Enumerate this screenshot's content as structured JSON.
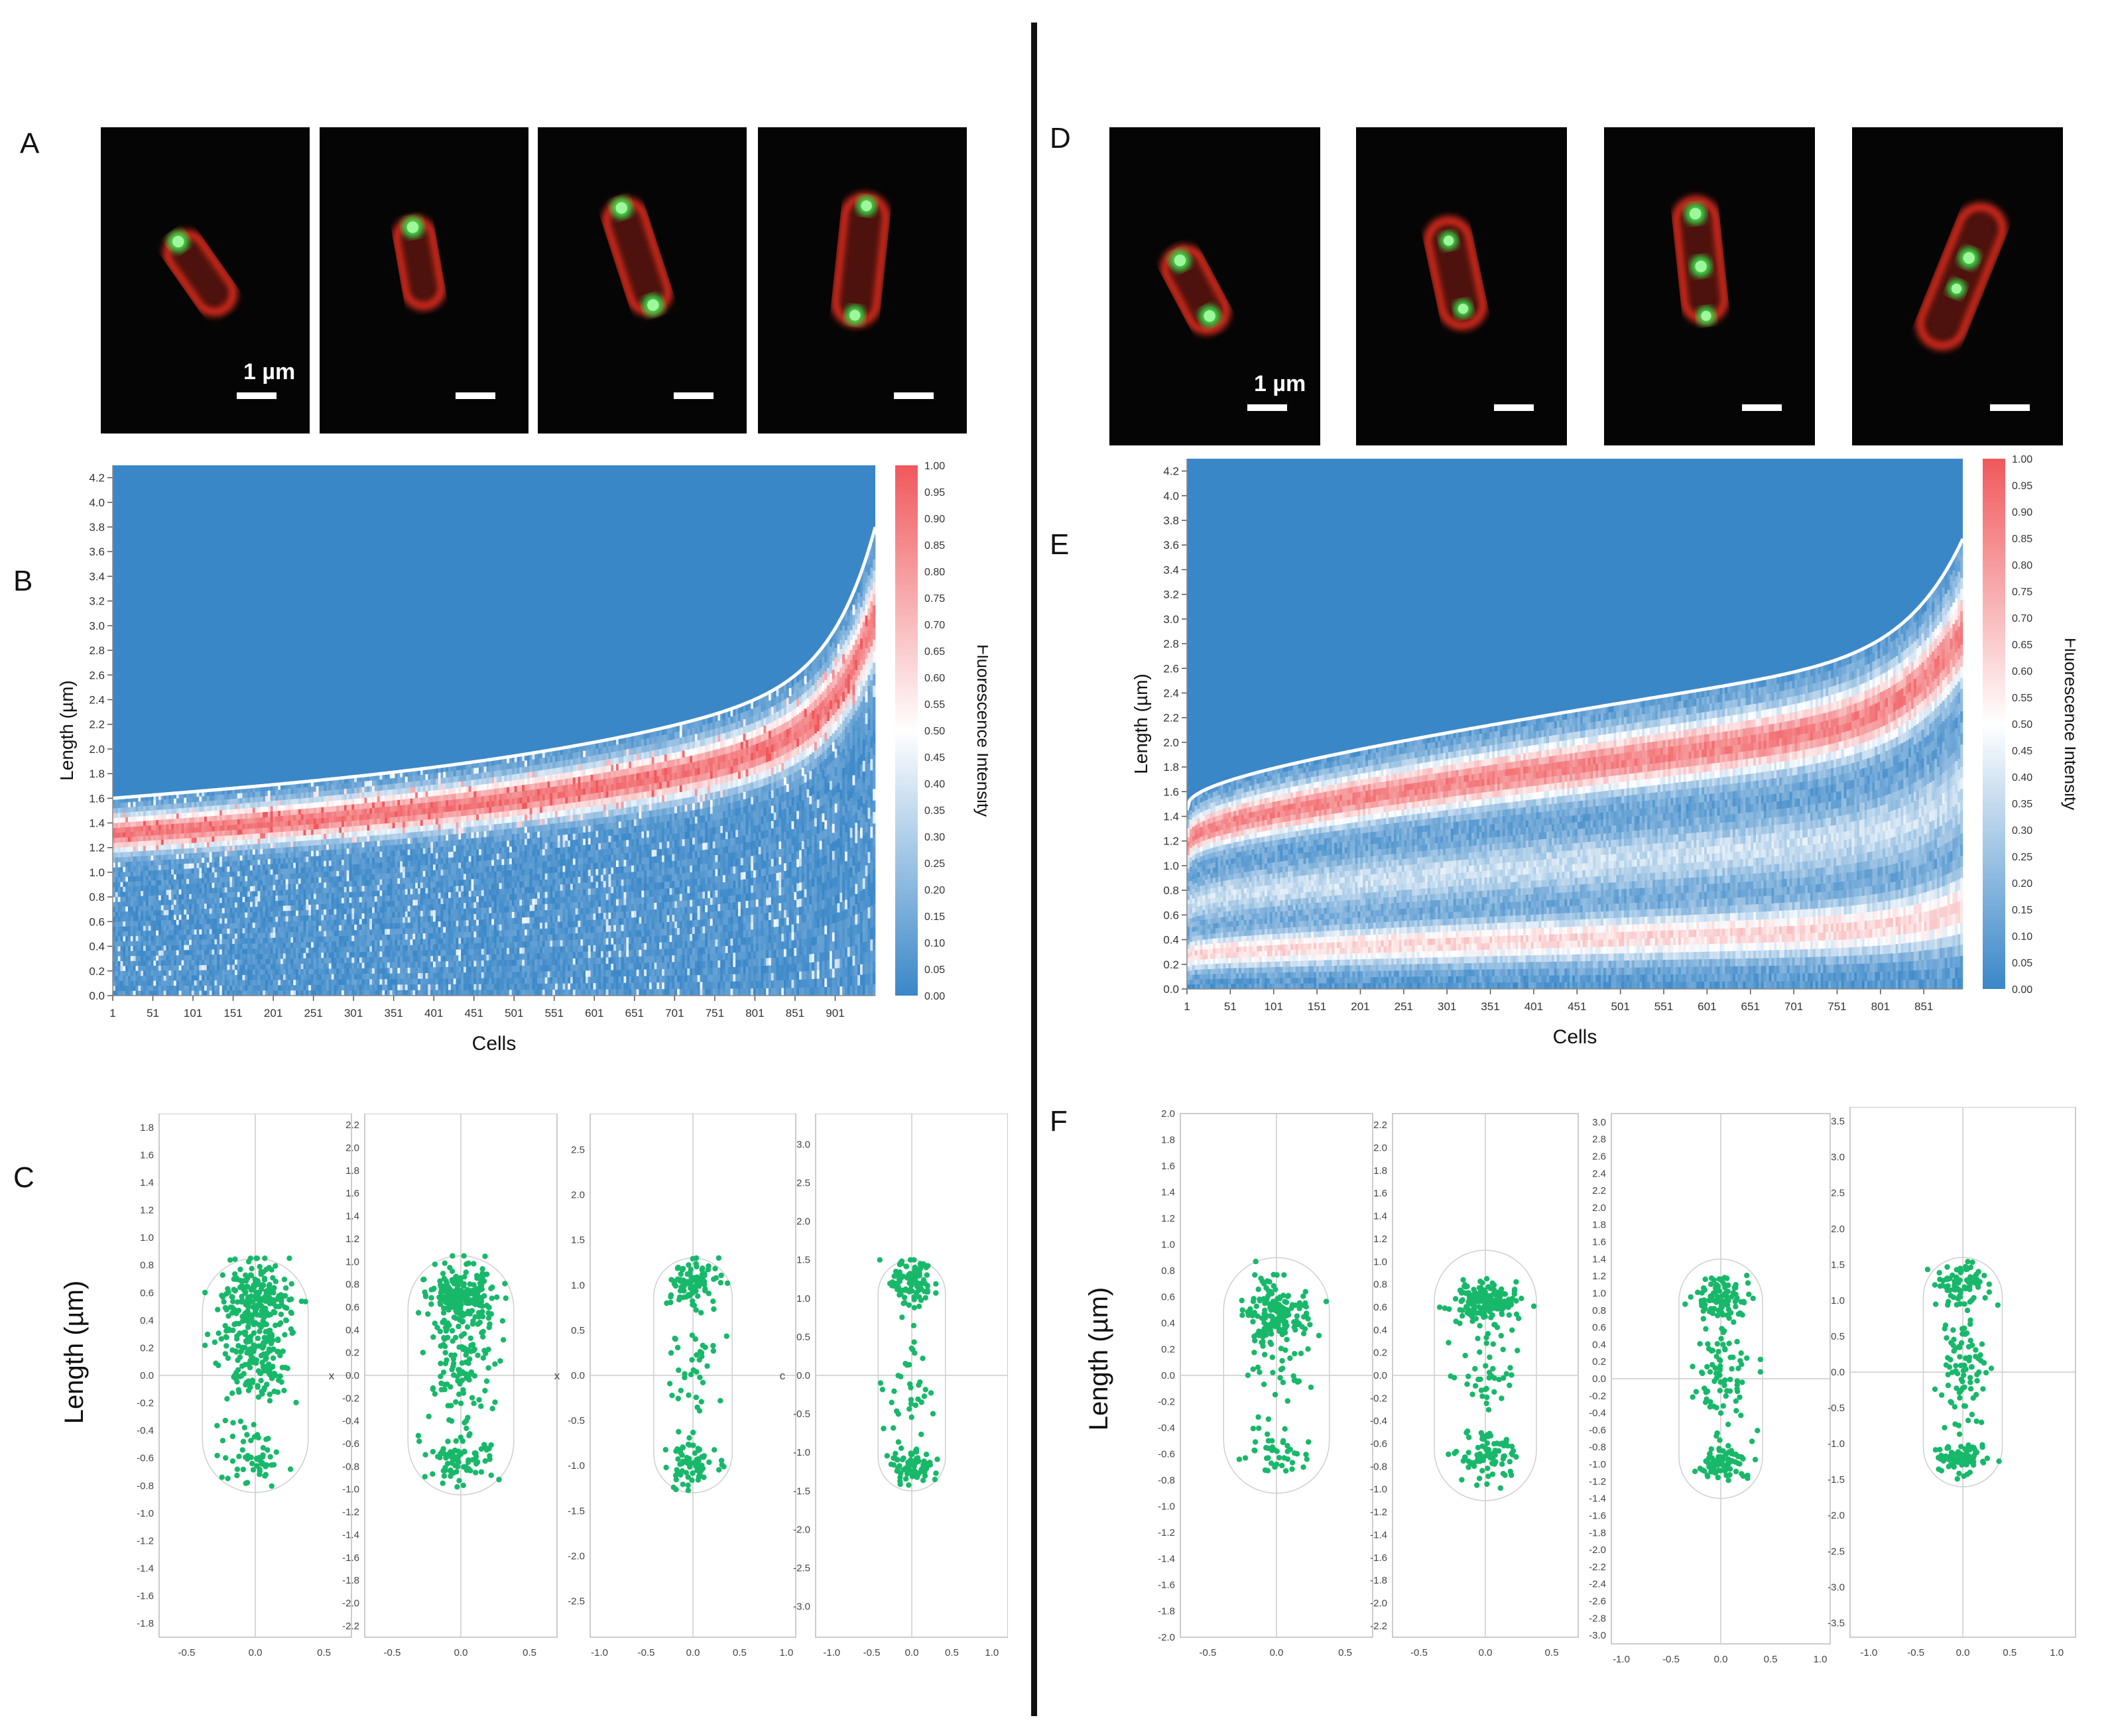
{
  "panel_labels": {
    "A": "A",
    "B": "B",
    "C": "C",
    "D": "D",
    "E": "E",
    "F": "F"
  },
  "micrographs": {
    "scale_text": "1 µm",
    "left_count": 4,
    "right_count": 4,
    "colors": {
      "cell": "#d42a1f",
      "focus": "#3bdc4a",
      "background": "#050505"
    }
  },
  "kymograph_B": {
    "ylabel": "Length (µm)",
    "xlabel": "Cells",
    "y_ticks": [
      "0.0",
      "0.2",
      "0.4",
      "0.6",
      "0.8",
      "1.0",
      "1.2",
      "1.4",
      "1.6",
      "1.8",
      "2.0",
      "2.2",
      "2.4",
      "2.6",
      "2.8",
      "3.0",
      "3.2",
      "3.4",
      "3.6",
      "3.8",
      "4.0",
      "4.2"
    ],
    "x_ticks": [
      "1",
      "51",
      "101",
      "151",
      "201",
      "251",
      "301",
      "351",
      "401",
      "451",
      "501",
      "551",
      "601",
      "651",
      "701",
      "751",
      "801",
      "851",
      "901"
    ],
    "colorbar_label": "Fluorescence Intensity",
    "colorbar_ticks": [
      "0.00",
      "0.05",
      "0.10",
      "0.15",
      "0.20",
      "0.25",
      "0.30",
      "0.35",
      "0.40",
      "0.45",
      "0.50",
      "0.55",
      "0.60",
      "0.65",
      "0.70",
      "0.75",
      "0.80",
      "0.85",
      "0.90",
      "0.95",
      "1.00"
    ]
  },
  "kymograph_E": {
    "ylabel": "Length (µm)",
    "xlabel": "Cells",
    "y_ticks": [
      "0.0",
      "0.2",
      "0.4",
      "0.6",
      "0.8",
      "1.0",
      "1.2",
      "1.4",
      "1.6",
      "1.8",
      "2.0",
      "2.2",
      "2.4",
      "2.6",
      "2.8",
      "3.0",
      "3.2",
      "3.4",
      "3.6",
      "3.8",
      "4.0",
      "4.2"
    ],
    "x_ticks": [
      "1",
      "51",
      "101",
      "151",
      "201",
      "251",
      "301",
      "351",
      "401",
      "451",
      "501",
      "551",
      "601",
      "651",
      "701",
      "751",
      "801",
      "851"
    ],
    "colorbar_label": "Fluorescence Intensity",
    "colorbar_ticks": [
      "0.00",
      "0.05",
      "0.10",
      "0.15",
      "0.20",
      "0.25",
      "0.30",
      "0.35",
      "0.40",
      "0.45",
      "0.50",
      "0.55",
      "0.60",
      "0.65",
      "0.70",
      "0.75",
      "0.80",
      "0.85",
      "0.90",
      "0.95",
      "1.00"
    ]
  },
  "colormap": {
    "low": "#3a87c8",
    "mid": "#ffffff",
    "high": "#f0585c"
  },
  "scatter_C_ylabel": "Length (µm)",
  "scatter_F_ylabel": "Length (µm)",
  "scatter_C": [
    {
      "y_ticks": [
        "-1.8",
        "-1.6",
        "-1.4",
        "-1.2",
        "-1.0",
        "-0.8",
        "-0.6",
        "-0.4",
        "-0.2",
        "0.0",
        "0.2",
        "0.4",
        "0.6",
        "0.8",
        "1.0",
        "1.2",
        "1.4",
        "1.6",
        "1.8"
      ],
      "x_ticks": [
        "-0.5",
        "0.0",
        "0.5"
      ],
      "side_label": "",
      "yrange": [
        -1.9,
        1.9
      ],
      "xrange": [
        -0.7,
        0.7
      ],
      "half_len": 0.85,
      "clusters": [
        [
          0.55,
          0.15,
          220
        ],
        [
          0.1,
          0.18,
          150
        ],
        [
          -0.55,
          0.12,
          60
        ]
      ]
    },
    {
      "y_ticks": [
        "-2.2",
        "-2.0",
        "-1.8",
        "-1.6",
        "-1.4",
        "-1.2",
        "-1.0",
        "-0.8",
        "-0.6",
        "-0.4",
        "-0.2",
        "0.0",
        "0.2",
        "0.4",
        "0.6",
        "0.8",
        "1.0",
        "1.2",
        "1.4",
        "1.6",
        "1.8",
        "2.0",
        "2.2"
      ],
      "x_ticks": [
        "-0.5",
        "0.0",
        "0.5"
      ],
      "side_label": "x",
      "yrange": [
        -2.3,
        2.3
      ],
      "xrange": [
        -0.7,
        0.7
      ],
      "half_len": 1.05,
      "clusters": [
        [
          0.7,
          0.13,
          230
        ],
        [
          0.1,
          0.3,
          120
        ],
        [
          -0.75,
          0.1,
          80
        ]
      ]
    },
    {
      "y_ticks": [
        "-2.5",
        "-2.0",
        "-1.5",
        "-1.0",
        "-0.5",
        "0.0",
        "0.5",
        "1.0",
        "1.5",
        "2.0",
        "2.5"
      ],
      "x_ticks": [
        "-1.0",
        "-0.5",
        "0.0",
        "0.5",
        "1.0"
      ],
      "side_label": "x",
      "yrange": [
        -2.9,
        2.9
      ],
      "xrange": [
        -1.1,
        1.1
      ],
      "half_len": 1.3,
      "clusters": [
        [
          1.0,
          0.12,
          100
        ],
        [
          0.0,
          0.4,
          40
        ],
        [
          -1.0,
          0.12,
          70
        ]
      ]
    },
    {
      "y_ticks": [
        "-3.0",
        "-2.5",
        "-2.0",
        "-1.5",
        "-1.0",
        "-0.5",
        "0.0",
        "0.5",
        "1.0",
        "1.5",
        "2.0",
        "2.5",
        "3.0"
      ],
      "x_ticks": [
        "-1.0",
        "-0.5",
        "0.0",
        "0.5",
        "1.0"
      ],
      "side_label": "c",
      "yrange": [
        -3.4,
        3.4
      ],
      "xrange": [
        -1.2,
        1.2
      ],
      "half_len": 1.5,
      "clusters": [
        [
          1.2,
          0.15,
          90
        ],
        [
          0.0,
          0.45,
          40
        ],
        [
          -1.2,
          0.1,
          70
        ]
      ]
    }
  ],
  "scatter_F": [
    {
      "y_ticks": [
        "-2.0",
        "-1.8",
        "-1.6",
        "-1.4",
        "-1.2",
        "-1.0",
        "-0.8",
        "-0.6",
        "-0.4",
        "-0.2",
        "0.0",
        "0.2",
        "0.4",
        "0.6",
        "0.8",
        "1.0",
        "1.2",
        "1.4",
        "1.6",
        "1.8",
        "2.0"
      ],
      "x_ticks": [
        "-0.5",
        "0.0",
        "0.5"
      ],
      "side_label": "",
      "yrange": [
        -2.0,
        2.0
      ],
      "xrange": [
        -0.7,
        0.7
      ],
      "half_len": 0.9,
      "clusters": [
        [
          0.5,
          0.12,
          140
        ],
        [
          0.1,
          0.22,
          50
        ],
        [
          -0.6,
          0.1,
          40
        ]
      ]
    },
    {
      "y_ticks": [
        "-2.2",
        "-2.0",
        "-1.8",
        "-1.6",
        "-1.4",
        "-1.2",
        "-1.0",
        "-0.8",
        "-0.6",
        "-0.4",
        "-0.2",
        "0.0",
        "0.2",
        "0.4",
        "0.6",
        "0.8",
        "1.0",
        "1.2",
        "1.4",
        "1.6",
        "1.8",
        "2.0",
        "2.2"
      ],
      "x_ticks": [
        "-0.5",
        "0.0",
        "0.5"
      ],
      "side_label": "",
      "yrange": [
        -2.3,
        2.3
      ],
      "xrange": [
        -0.7,
        0.7
      ],
      "half_len": 1.1,
      "clusters": [
        [
          0.65,
          0.1,
          170
        ],
        [
          0.0,
          0.2,
          40
        ],
        [
          -0.7,
          0.1,
          90
        ]
      ]
    },
    {
      "y_ticks": [
        "-3.0",
        "-2.8",
        "-2.6",
        "-2.4",
        "-2.2",
        "-2.0",
        "-1.8",
        "-1.6",
        "-1.4",
        "-1.2",
        "-1.0",
        "-0.8",
        "-0.6",
        "-0.4",
        "-0.2",
        "0.0",
        "0.2",
        "0.4",
        "0.6",
        "0.8",
        "1.0",
        "1.2",
        "1.4",
        "1.6",
        "1.8",
        "2.0",
        "2.2",
        "2.4",
        "2.6",
        "2.8",
        "3.0"
      ],
      "x_ticks": [
        "-1.0",
        "-0.5",
        "0.0",
        "0.5",
        "1.0"
      ],
      "side_label": "",
      "yrange": [
        -3.1,
        3.1
      ],
      "xrange": [
        -1.1,
        1.1
      ],
      "half_len": 1.4,
      "clusters": [
        [
          0.95,
          0.15,
          90
        ],
        [
          0.05,
          0.35,
          80
        ],
        [
          -0.95,
          0.12,
          80
        ]
      ]
    },
    {
      "y_ticks": [
        "-3.5",
        "-3.0",
        "-2.5",
        "-2.0",
        "-1.5",
        "-1.0",
        "-0.5",
        "0.0",
        "0.5",
        "1.0",
        "1.5",
        "2.0",
        "2.5",
        "3.0",
        "3.5"
      ],
      "x_ticks": [
        "-1.0",
        "-0.5",
        "0.0",
        "0.5",
        "1.0"
      ],
      "side_label": "",
      "yrange": [
        -3.7,
        3.7
      ],
      "xrange": [
        -1.2,
        1.2
      ],
      "half_len": 1.6,
      "clusters": [
        [
          1.25,
          0.15,
          80
        ],
        [
          0.1,
          0.4,
          90
        ],
        [
          -1.2,
          0.12,
          80
        ]
      ]
    }
  ],
  "scatter_color": "#18b86a"
}
